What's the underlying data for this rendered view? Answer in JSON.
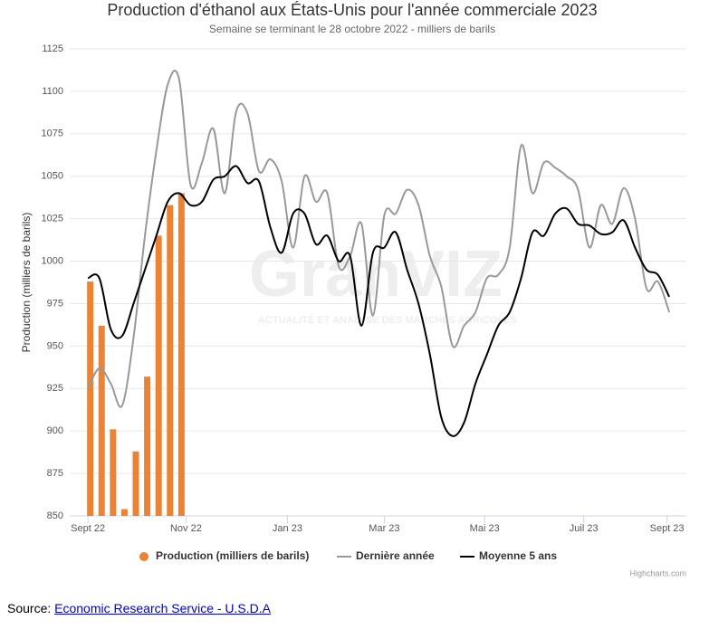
{
  "chart_data": {
    "type": "combo",
    "title": "Production d'éthanol aux États-Unis pour l'année commerciale 2023",
    "subtitle": "Semaine se terminant le 28 octobre 2022 - milliers de barils",
    "y_axis_label": "Production (milliers de barils)",
    "watermark": {
      "brand": "GranVIZ",
      "tagline": "ACTUALITÉ ET ANALYSE DES MARCHÉS AGRICOLES"
    },
    "credits": "Highcharts.com",
    "ylim": [
      850,
      1125
    ],
    "yticks": [
      850,
      875,
      900,
      925,
      950,
      975,
      1000,
      1025,
      1050,
      1075,
      1100,
      1125
    ],
    "xlim": [
      -1.6,
      52.5
    ],
    "xticks": [
      {
        "value": 0,
        "label": "Sept 22"
      },
      {
        "value": 8.6,
        "label": "Nov 22"
      },
      {
        "value": 17.5,
        "label": "Jan 23"
      },
      {
        "value": 26,
        "label": "Mar 23"
      },
      {
        "value": 34.8,
        "label": "Mai 23"
      },
      {
        "value": 43.5,
        "label": "Juil 23"
      },
      {
        "value": 50.8,
        "label": "Sept 23"
      }
    ],
    "grid": true,
    "series": [
      {
        "name": "Production (milliers de barils)",
        "type": "bar",
        "color": "#ec8233",
        "x": [
          0.2,
          1.2,
          2.2,
          3.2,
          4.2,
          5.2,
          6.2,
          7.2,
          8.2
        ],
        "values": [
          988,
          962,
          901,
          854,
          888,
          932,
          1015,
          1033,
          1040
        ]
      },
      {
        "name": "Dernière année",
        "type": "line",
        "color": "#999999",
        "x": [
          0,
          1,
          2,
          3,
          4,
          5,
          6,
          7,
          8,
          9,
          10,
          11,
          12,
          13,
          14,
          15,
          16,
          17,
          18,
          19,
          20,
          21,
          22,
          23,
          24,
          25,
          26,
          27,
          28,
          29,
          30,
          31,
          32,
          33,
          34,
          35,
          36,
          37,
          38,
          39,
          40,
          41,
          42,
          43,
          44,
          45,
          46,
          47,
          48,
          49,
          50,
          51
        ],
        "values": [
          925,
          937,
          928,
          915,
          955,
          1015,
          1065,
          1104,
          1107,
          1045,
          1058,
          1078,
          1040,
          1088,
          1087,
          1053,
          1060,
          1047,
          1008,
          1050,
          1035,
          1040,
          997,
          1003,
          1022,
          968,
          1027,
          1028,
          1042,
          1033,
          1003,
          985,
          950,
          962,
          970,
          990,
          992,
          1008,
          1068,
          1040,
          1058,
          1055,
          1050,
          1042,
          1008,
          1033,
          1022,
          1043,
          1025,
          984,
          988,
          970
        ]
      },
      {
        "name": "Moyenne 5 ans",
        "type": "line",
        "color": "#000000",
        "x": [
          0,
          1,
          2,
          3,
          4,
          5,
          6,
          7,
          8,
          9,
          10,
          11,
          12,
          13,
          14,
          15,
          16,
          17,
          18,
          19,
          20,
          21,
          22,
          23,
          24,
          25,
          26,
          27,
          28,
          29,
          30,
          31,
          32,
          33,
          34,
          35,
          36,
          37,
          38,
          39,
          40,
          41,
          42,
          43,
          44,
          45,
          46,
          47,
          48,
          49,
          50,
          51
        ],
        "values": [
          990,
          990,
          960,
          956,
          975,
          995,
          1015,
          1035,
          1040,
          1033,
          1035,
          1048,
          1050,
          1056,
          1046,
          1047,
          1020,
          1005,
          1028,
          1028,
          1010,
          1015,
          1000,
          1003,
          962,
          1005,
          1008,
          1017,
          995,
          975,
          945,
          908,
          897,
          905,
          928,
          945,
          962,
          970,
          990,
          1017,
          1015,
          1028,
          1031,
          1022,
          1021,
          1016,
          1017,
          1024,
          1008,
          995,
          992,
          979
        ]
      }
    ]
  },
  "source": {
    "prefix": "Source:",
    "link": "Economic Research Service - U.S.D.A"
  }
}
